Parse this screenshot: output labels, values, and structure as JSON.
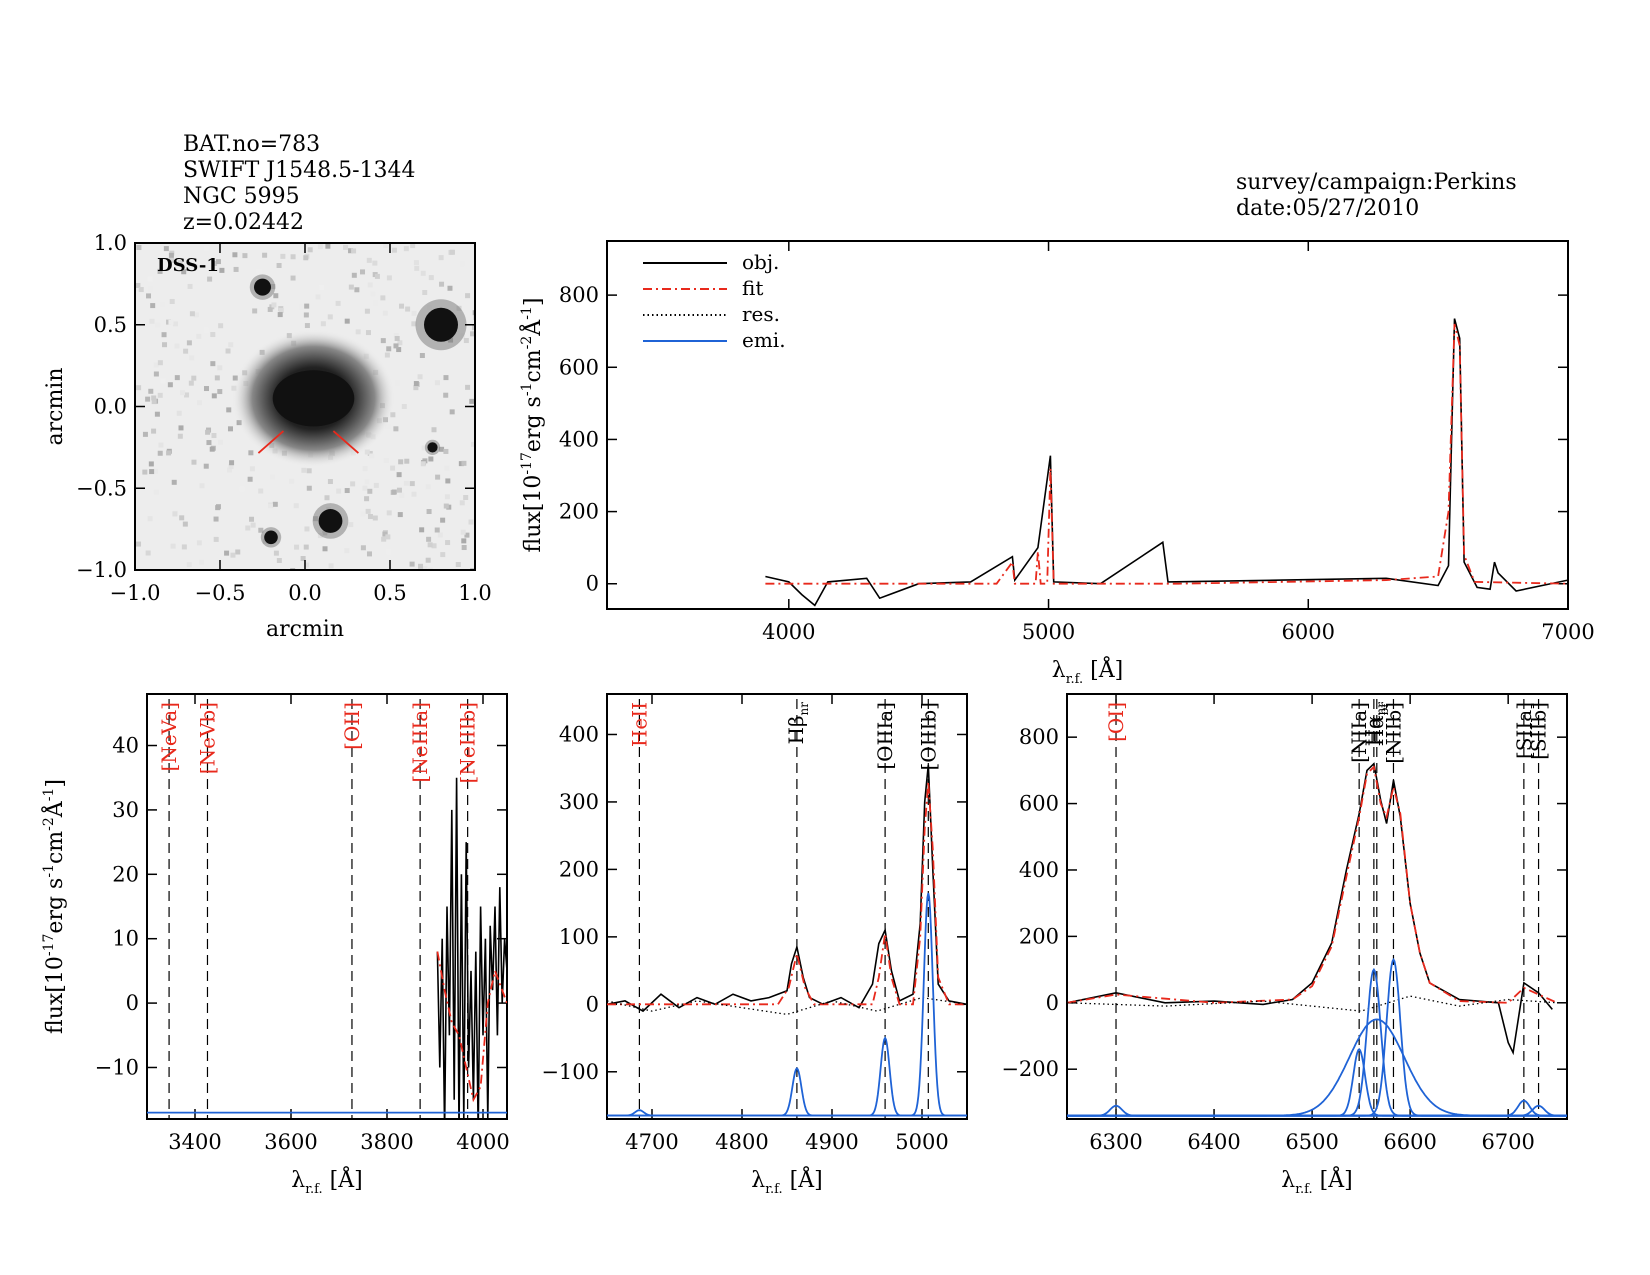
{
  "header": {
    "bat_no": "BAT.no=783",
    "swift_name": "SWIFT J1548.5-1344",
    "ngc_name": "NGC 5995",
    "redshift": "z=0.02442",
    "survey": "survey/campaign:Perkins",
    "date": "date:05/27/2010"
  },
  "colors": {
    "object": "#000000",
    "fit": "#e8291c",
    "residual": "#000000",
    "emission": "#1f63d6",
    "red_label": "#e8291c"
  },
  "chart_data": [
    {
      "type": "image",
      "panel": "dss-image",
      "label": "DSS-1",
      "xlabel": "arcmin",
      "ylabel": "arcmin",
      "xlim": [
        -1.0,
        1.0
      ],
      "ylim": [
        -1.0,
        1.0
      ],
      "xticks": [
        "−1.0",
        "−0.5",
        "0.0",
        "0.5",
        "1.0"
      ],
      "yticks": [
        "−1.0",
        "−0.5",
        "0.0",
        "0.5",
        "1.0"
      ],
      "xtick_values": [
        -1.0,
        -0.5,
        0.0,
        0.5,
        1.0
      ],
      "ytick_values": [
        -1.0,
        -0.5,
        0.0,
        0.5,
        1.0
      ],
      "sources": [
        {
          "x": 0.05,
          "y": 0.05,
          "size": 0.3,
          "kind": "galaxy"
        },
        {
          "x": -0.25,
          "y": 0.73,
          "size": 0.05,
          "kind": "star"
        },
        {
          "x": 0.8,
          "y": 0.5,
          "size": 0.1,
          "kind": "star"
        },
        {
          "x": 0.15,
          "y": -0.7,
          "size": 0.07,
          "kind": "star"
        },
        {
          "x": -0.2,
          "y": -0.8,
          "size": 0.04,
          "kind": "star"
        },
        {
          "x": 0.75,
          "y": -0.25,
          "size": 0.03,
          "kind": "star"
        }
      ]
    },
    {
      "type": "line",
      "panel": "full-spectrum",
      "xlabel": "λr.f. [Å]",
      "ylabel": "flux[10-17erg s-1cm-2Å-1]",
      "xlim": [
        3300,
        7000
      ],
      "ylim": [
        -70,
        950
      ],
      "xticks": [
        4000,
        5000,
        6000,
        7000
      ],
      "yticks": [
        0,
        200,
        400,
        600,
        800
      ],
      "legend": {
        "position": "top-left",
        "entries": [
          {
            "label": "obj.",
            "style": "solid",
            "color": "#000000"
          },
          {
            "label": "fit",
            "style": "dashdot",
            "color": "#e8291c"
          },
          {
            "label": "res.",
            "style": "dotted",
            "color": "#000000"
          },
          {
            "label": "emi.",
            "style": "solid",
            "color": "#1f63d6"
          }
        ]
      },
      "series": [
        {
          "name": "obj.",
          "role": "object",
          "x": [
            3910,
            4000,
            4050,
            4100,
            4150,
            4300,
            4350,
            4500,
            4700,
            4861,
            4870,
            4959,
            5007,
            5020,
            5200,
            5440,
            5460,
            5900,
            6300,
            6500,
            6540,
            6563,
            6583,
            6600,
            6650,
            6700,
            6717,
            6731,
            6800,
            7000
          ],
          "y": [
            20,
            5,
            -30,
            -60,
            5,
            15,
            -40,
            0,
            5,
            75,
            10,
            100,
            355,
            5,
            0,
            115,
            5,
            10,
            15,
            -5,
            50,
            735,
            680,
            60,
            -10,
            -15,
            60,
            30,
            -20,
            10
          ]
        },
        {
          "name": "fit",
          "role": "fit",
          "x": [
            3910,
            4000,
            4300,
            4800,
            4861,
            4870,
            4950,
            4959,
            4970,
            4995,
            5007,
            5020,
            5500,
            6300,
            6500,
            6540,
            6563,
            6583,
            6600,
            6640,
            7000
          ],
          "y": [
            0,
            0,
            0,
            0,
            60,
            0,
            0,
            90,
            0,
            0,
            320,
            0,
            0,
            10,
            20,
            200,
            720,
            660,
            80,
            5,
            0
          ]
        }
      ]
    },
    {
      "type": "line",
      "panel": "zoom-blue",
      "xlabel": "λr.f. [Å]",
      "ylabel": "flux[10-17erg s-1cm-2Å-1]",
      "xlim": [
        3300,
        4050
      ],
      "ylim": [
        -18,
        48
      ],
      "xticks": [
        3400,
        3600,
        3800,
        4000
      ],
      "yticks": [
        -10,
        0,
        10,
        20,
        30,
        40
      ],
      "lines": [
        {
          "label": "[NeVa]",
          "x": 3346
        },
        {
          "label": "[NeVb]",
          "x": 3426
        },
        {
          "label": "[OII]",
          "x": 3727
        },
        {
          "label": "[NeIIIa]",
          "x": 3869
        },
        {
          "label": "[NeIIIb]",
          "x": 3968
        }
      ],
      "series": [
        {
          "name": "obj.",
          "role": "object",
          "x": [
            3905,
            3910,
            3915,
            3920,
            3925,
            3930,
            3935,
            3940,
            3945,
            3950,
            3955,
            3960,
            3965,
            3970,
            3975,
            3980,
            3985,
            3990,
            3995,
            4000,
            4005,
            4010,
            4015,
            4020,
            4025,
            4030,
            4035,
            4040,
            4045,
            4050
          ],
          "y": [
            8,
            -10,
            10,
            -20,
            15,
            -5,
            30,
            -15,
            35,
            -20,
            20,
            -18,
            25,
            -10,
            5,
            -15,
            8,
            -20,
            15,
            -5,
            10,
            -18,
            12,
            2,
            15,
            -5,
            18,
            0,
            10,
            5
          ]
        },
        {
          "name": "fit",
          "role": "fit",
          "x": [
            3905,
            3920,
            3935,
            3950,
            3965,
            3980,
            3995,
            4010,
            4025,
            4050
          ],
          "y": [
            8,
            2,
            -3,
            -5,
            -10,
            -15,
            -13,
            0,
            5,
            0
          ]
        },
        {
          "name": "emi.",
          "role": "emission",
          "x": [
            3300,
            4050
          ],
          "y": [
            -17,
            -17
          ]
        }
      ]
    },
    {
      "type": "line",
      "panel": "zoom-hbeta-oiii",
      "xlabel": "λr.f. [Å]",
      "xlim": [
        4650,
        5050
      ],
      "ylim": [
        -170,
        460
      ],
      "xticks": [
        4700,
        4800,
        4900,
        5000
      ],
      "yticks": [
        -100,
        0,
        100,
        200,
        300,
        400
      ],
      "lines": [
        {
          "label": "HeII",
          "x": 4686,
          "color": "red"
        },
        {
          "label": "Hβnr",
          "x": 4861,
          "color": "black"
        },
        {
          "label": "[OIIIa]",
          "x": 4959,
          "color": "black"
        },
        {
          "label": "[OIIIb]",
          "x": 5007,
          "color": "black"
        }
      ],
      "series": [
        {
          "name": "obj.",
          "role": "object",
          "x": [
            4650,
            4670,
            4690,
            4710,
            4730,
            4750,
            4770,
            4790,
            4810,
            4830,
            4850,
            4855,
            4861,
            4868,
            4875,
            4890,
            4910,
            4930,
            4945,
            4952,
            4959,
            4966,
            4975,
            4990,
            4998,
            5003,
            5007,
            5012,
            5018,
            5030,
            5050
          ],
          "y": [
            0,
            5,
            -10,
            15,
            -5,
            10,
            0,
            15,
            5,
            10,
            20,
            60,
            85,
            40,
            10,
            0,
            10,
            -5,
            30,
            90,
            110,
            50,
            5,
            15,
            120,
            300,
            355,
            200,
            30,
            5,
            0
          ]
        },
        {
          "name": "fit",
          "role": "fit",
          "x": [
            4650,
            4840,
            4852,
            4861,
            4870,
            4880,
            4945,
            4952,
            4959,
            4966,
            4975,
            4990,
            4998,
            5003,
            5007,
            5012,
            5018,
            5030,
            5050
          ],
          "y": [
            0,
            0,
            25,
            75,
            25,
            0,
            0,
            40,
            105,
            40,
            0,
            0,
            100,
            260,
            330,
            230,
            40,
            0,
            0
          ]
        },
        {
          "name": "res.",
          "role": "residual",
          "x": [
            4650,
            4700,
            4750,
            4800,
            4850,
            4900,
            4950,
            5000,
            5050
          ],
          "y": [
            5,
            -10,
            5,
            -5,
            -15,
            5,
            -10,
            10,
            0
          ]
        },
        {
          "name": "emi.",
          "role": "emission",
          "x": [
            4650,
            4686,
            4861,
            4959,
            5007,
            5050
          ],
          "y": [
            -165,
            -160,
            -95,
            -50,
            165,
            -165
          ]
        }
      ]
    },
    {
      "type": "line",
      "panel": "zoom-halpha",
      "xlabel": "λr.f. [Å]",
      "xlim": [
        6250,
        6760
      ],
      "ylim": [
        -350,
        930
      ],
      "xticks": [
        6300,
        6400,
        6500,
        6600,
        6700
      ],
      "yticks": [
        -200,
        0,
        200,
        400,
        600,
        800
      ],
      "lines": [
        {
          "label": "[OI]",
          "x": 6300,
          "color": "red"
        },
        {
          "label": "[NIIa]",
          "x": 6548,
          "color": "black"
        },
        {
          "label": "Hαnr",
          "x": 6563,
          "color": "black"
        },
        {
          "label": "Hαbr",
          "x": 6566,
          "color": "black"
        },
        {
          "label": "[NIIb]",
          "x": 6583,
          "color": "black"
        },
        {
          "label": "[SIIa]",
          "x": 6716,
          "color": "black"
        },
        {
          "label": "[SIIb]",
          "x": 6731,
          "color": "black"
        }
      ],
      "series": [
        {
          "name": "obj.",
          "role": "object",
          "x": [
            6250,
            6300,
            6350,
            6400,
            6450,
            6480,
            6500,
            6520,
            6535,
            6548,
            6556,
            6563,
            6570,
            6576,
            6583,
            6590,
            6600,
            6610,
            6620,
            6650,
            6690,
            6700,
            6705,
            6716,
            6731,
            6745
          ],
          "y": [
            0,
            30,
            0,
            5,
            -5,
            10,
            60,
            180,
            400,
            570,
            700,
            720,
            610,
            540,
            670,
            560,
            300,
            150,
            60,
            10,
            0,
            -120,
            -150,
            60,
            30,
            -20
          ]
        },
        {
          "name": "fit",
          "role": "fit",
          "x": [
            6250,
            6300,
            6400,
            6480,
            6500,
            6520,
            6535,
            6548,
            6556,
            6563,
            6570,
            6576,
            6583,
            6590,
            6600,
            6610,
            6620,
            6650,
            6700,
            6716,
            6731,
            6750
          ],
          "y": [
            0,
            25,
            0,
            10,
            50,
            170,
            380,
            560,
            690,
            710,
            600,
            560,
            650,
            570,
            300,
            150,
            60,
            5,
            0,
            45,
            25,
            0
          ]
        },
        {
          "name": "res.",
          "role": "residual",
          "x": [
            6250,
            6350,
            6450,
            6550,
            6600,
            6650,
            6700,
            6750
          ],
          "y": [
            0,
            -10,
            5,
            -25,
            20,
            -10,
            10,
            0
          ]
        }
      ],
      "emission_components": [
        {
          "name": "[OI]",
          "center": 6300,
          "amp": 30,
          "sigma": 6
        },
        {
          "name": "[NIIa]",
          "center": 6548,
          "amp": 200,
          "sigma": 6
        },
        {
          "name": "Hα narrow",
          "center": 6563,
          "amp": 440,
          "sigma": 7
        },
        {
          "name": "Hα broad",
          "center": 6566,
          "amp": 290,
          "sigma": 28
        },
        {
          "name": "[NIIb]",
          "center": 6583,
          "amp": 470,
          "sigma": 7
        },
        {
          "name": "[SIIa]",
          "center": 6716,
          "amp": 45,
          "sigma": 6
        },
        {
          "name": "[SIIb]",
          "center": 6731,
          "amp": 30,
          "sigma": 6
        }
      ],
      "emission_baseline": -340
    }
  ]
}
